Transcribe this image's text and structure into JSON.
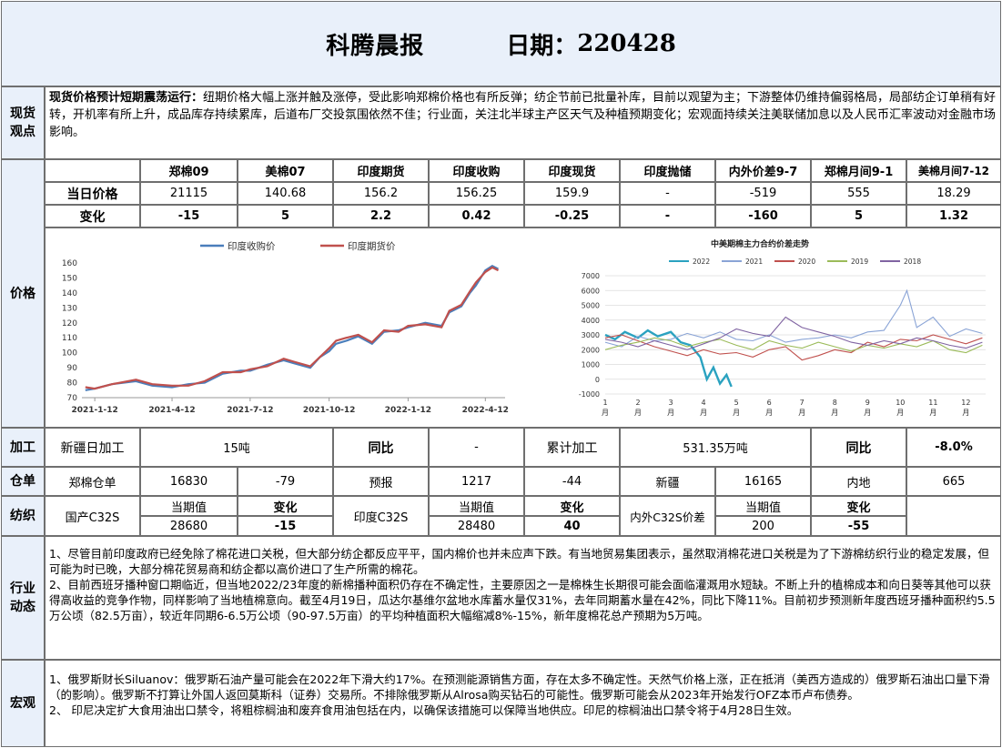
{
  "header": {
    "title": "科腾晨报",
    "date_label": "日期：",
    "date_value": "220428"
  },
  "spot_view": {
    "label": "现货\n观点",
    "headline": "现货价格预计短期震荡运行：",
    "text": "纽期价格大幅上涨并触及涨停，受此影响郑棉价格也有所反弹；纺企节前已批量补库，目前以观望为主；下游整体仍维持偏弱格局，局部纺企订单稍有好转，开机率有所上升，成品库存持续累库，后道布厂交投氛围依然不佳；行业面，关注北半球主产区天气及种植预期变化；宏观面持续关注美联储加息以及人民币汇率波动对金融市场影响。"
  },
  "price": {
    "label": "价格",
    "headers": [
      "郑棉09",
      "美棉07",
      "印度期货",
      "印度收购",
      "印度现货",
      "印度抛储",
      "内外价差9-7",
      "郑棉月间9-1",
      "美棉月间7-12"
    ],
    "row1_label": "当日价格",
    "row1": [
      "21115",
      "140.68",
      "156.2",
      "156.25",
      "159.9",
      "-",
      "-519",
      "555",
      "18.29"
    ],
    "row2_label": "变化",
    "row2": [
      "-15",
      "5",
      "2.2",
      "0.42",
      "-0.25",
      "-",
      "-160",
      "5",
      "1.32"
    ]
  },
  "chart_data": [
    {
      "type": "line",
      "title": "",
      "series": [
        {
          "name": "印度收购价",
          "color": "#4a7ebb",
          "x": [
            "2021-01-01",
            "2021-01-12",
            "2021-02-01",
            "2021-03-01",
            "2021-03-20",
            "2021-04-12",
            "2021-05-01",
            "2021-05-20",
            "2021-06-10",
            "2021-07-01",
            "2021-07-12",
            "2021-08-01",
            "2021-08-20",
            "2021-09-01",
            "2021-09-20",
            "2021-10-01",
            "2021-10-12",
            "2021-10-20",
            "2021-11-01",
            "2021-11-15",
            "2021-12-01",
            "2021-12-15",
            "2022-01-01",
            "2022-01-12",
            "2022-02-01",
            "2022-02-20",
            "2022-03-01",
            "2022-03-15",
            "2022-03-25",
            "2022-04-01",
            "2022-04-12",
            "2022-04-20",
            "2022-04-27"
          ],
          "values": [
            75,
            76,
            79,
            81,
            78,
            77,
            79,
            80,
            86,
            88,
            88,
            92,
            95,
            93,
            90,
            97,
            101,
            106,
            108,
            111,
            106,
            114,
            115,
            117,
            120,
            118,
            127,
            131,
            140,
            145,
            155,
            158,
            156
          ]
        },
        {
          "name": "印度期货价",
          "color": "#c0504d",
          "x": [
            "2021-01-01",
            "2021-01-12",
            "2021-02-01",
            "2021-03-01",
            "2021-03-20",
            "2021-04-12",
            "2021-05-01",
            "2021-05-20",
            "2021-06-10",
            "2021-07-01",
            "2021-07-12",
            "2021-08-01",
            "2021-08-20",
            "2021-09-01",
            "2021-09-20",
            "2021-10-01",
            "2021-10-12",
            "2021-10-20",
            "2021-11-01",
            "2021-11-15",
            "2021-12-01",
            "2021-12-15",
            "2022-01-01",
            "2022-01-12",
            "2022-02-01",
            "2022-02-20",
            "2022-03-01",
            "2022-03-15",
            "2022-03-25",
            "2022-04-01",
            "2022-04-12",
            "2022-04-20",
            "2022-04-27"
          ],
          "values": [
            77,
            76,
            79,
            82,
            79,
            78,
            78,
            81,
            87,
            87,
            89,
            91,
            96,
            94,
            91,
            97,
            103,
            108,
            110,
            112,
            107,
            115,
            114,
            118,
            119,
            117,
            128,
            132,
            141,
            147,
            154,
            157,
            155
          ]
        }
      ],
      "xticks": [
        "2021-1-12",
        "2021-4-12",
        "2021-7-12",
        "2021-10-12",
        "2022-1-12",
        "2022-4-12"
      ],
      "ylim": [
        70,
        160
      ],
      "yticks": [
        70,
        80,
        90,
        100,
        110,
        120,
        130,
        140,
        150,
        160
      ],
      "legend": "top-center"
    },
    {
      "type": "line",
      "title": "中美期棉主力合约价差走势",
      "xticks": [
        "1\n月",
        "2\n月",
        "3\n月",
        "4\n月",
        "5\n月",
        "6\n月",
        "7\n月",
        "8\n月",
        "9\n月",
        "10\n月",
        "11\n月",
        "12\n月"
      ],
      "ylim": [
        -1000,
        7000
      ],
      "yticks": [
        -1000,
        0,
        1000,
        2000,
        3000,
        4000,
        5000,
        6000,
        7000
      ],
      "legend": "top",
      "series": [
        {
          "name": "2022",
          "color": "#2aa2c0",
          "x": [
            1,
            1.3,
            1.6,
            2,
            2.3,
            2.6,
            3,
            3.3,
            3.6,
            3.9,
            4.1,
            4.3,
            4.5,
            4.7,
            4.85
          ],
          "values": [
            3000,
            2700,
            3200,
            2800,
            3300,
            2900,
            3200,
            2500,
            2300,
            1500,
            0,
            800,
            -300,
            300,
            -500
          ]
        },
        {
          "name": "2021",
          "color": "#8aa4d6",
          "x": [
            1,
            1.5,
            2,
            2.5,
            3,
            3.5,
            4,
            4.5,
            5,
            5.5,
            6,
            6.5,
            7,
            7.5,
            8,
            8.5,
            9,
            9.5,
            10,
            10.2,
            10.5,
            11,
            11.5,
            12,
            12.5
          ],
          "values": [
            2500,
            2200,
            2900,
            2600,
            2700,
            3100,
            2800,
            3200,
            2700,
            2600,
            3000,
            2500,
            2700,
            2800,
            3000,
            2800,
            3200,
            3300,
            5000,
            6000,
            3500,
            4200,
            2900,
            3400,
            3100
          ]
        },
        {
          "name": "2020",
          "color": "#c0504d",
          "x": [
            1,
            1.5,
            2,
            2.5,
            3,
            3.5,
            4,
            4.5,
            5,
            5.5,
            6,
            6.5,
            7,
            7.5,
            8,
            8.5,
            9,
            9.5,
            10,
            10.5,
            11,
            11.5,
            12,
            12.5
          ],
          "values": [
            2800,
            3000,
            2600,
            2200,
            1900,
            1600,
            2000,
            1700,
            1800,
            1500,
            2000,
            2200,
            1300,
            1600,
            2000,
            1800,
            2500,
            2200,
            2700,
            2600,
            3000,
            2700,
            2400,
            2800
          ]
        },
        {
          "name": "2019",
          "color": "#9bbb59",
          "x": [
            1,
            1.5,
            2,
            2.5,
            3,
            3.5,
            4,
            4.5,
            5,
            5.5,
            6,
            6.5,
            7,
            7.5,
            8,
            8.5,
            9,
            9.5,
            10,
            10.5,
            11,
            11.5,
            12,
            12.5
          ],
          "values": [
            2000,
            2300,
            2500,
            2800,
            2600,
            2200,
            2500,
            2700,
            2300,
            2000,
            2600,
            2300,
            2100,
            2500,
            2200,
            1900,
            2300,
            2100,
            2400,
            2200,
            2600,
            2000,
            1800,
            2300
          ]
        },
        {
          "name": "2018",
          "color": "#8064a2",
          "x": [
            1,
            1.5,
            2,
            2.5,
            3,
            3.5,
            4,
            4.5,
            5,
            5.5,
            6,
            6.5,
            7,
            7.5,
            8,
            8.5,
            9,
            9.5,
            10,
            10.5,
            11,
            11.5,
            12,
            12.5
          ],
          "values": [
            2700,
            2500,
            2200,
            2600,
            2300,
            2000,
            2400,
            2800,
            3400,
            3100,
            2900,
            4200,
            3500,
            3200,
            2900,
            2500,
            2300,
            2600,
            2400,
            2800,
            2600,
            2300,
            2100,
            2500
          ]
        }
      ]
    }
  ],
  "processing": {
    "label": "加工",
    "item1": "新疆日加工",
    "value1": "15吨",
    "yoy1_label": "同比",
    "yoy1": "-",
    "item2": "累计加工",
    "value2": "531.35万吨",
    "yoy2_label": "同比",
    "yoy2": "-8.0%"
  },
  "warehouse": {
    "label": "仓单",
    "items": [
      "郑棉仓单",
      "16830",
      "-79",
      "预报",
      "1217",
      "-44",
      "新疆",
      "16165",
      "内地",
      "665"
    ]
  },
  "textile": {
    "label": "纺织",
    "g1_name": "国产C32S",
    "g1_cur_label": "当期值",
    "g1_chg_label": "变化",
    "g1_cur": "28680",
    "g1_chg": "-15",
    "g2_name": "印度C32S",
    "g2_cur_label": "当期值",
    "g2_chg_label": "变化",
    "g2_cur": "28480",
    "g2_chg": "40",
    "g3_name": "内外C32S价差",
    "g3_cur_label": "当期值",
    "g3_chg_label": "变化",
    "g3_cur": "200",
    "g3_chg": "-55"
  },
  "industry": {
    "label": "行业\n动态",
    "p1": "1、尽管目前印度政府已经免除了棉花进口关税，但大部分纺企都反应平平，国内棉价也并未应声下跌。有当地贸易集团表示，虽然取消棉花进口关税是为了下游棉纺织行业的稳定发展，但可能为时已晚，大部分棉花贸易商和纺企都以高价进口了生产所需的棉花。",
    "p2": "2、目前西班牙播种窗口期临近，但当地2022/23年度的新棉播种面积仍存在不确定性，主要原因之一是棉株生长期很可能会面临灌溉用水短缺。不断上升的植棉成本和向日葵等其他可以获得高收益的竞争作物，同样影响了当地植棉意向。截至4月19日，瓜达尔基维尔盆地水库蓄水量仅31%，去年同期蓄水量在42%，同比下降11%。目前初步预测新年度西班牙播种面积约5.5万公顷（82.5万亩），较近年同期6-6.5万公顷（90-97.5万亩）的平均种植面积大幅缩减8%-15%，新年度棉花总产预期为5万吨。"
  },
  "macro": {
    "label": "宏观",
    "p1": "1、俄罗斯财长Siluanov：俄罗斯石油产量可能会在2022年下滑大约17%。在预测能源销售方面，存在太多不确定性。天然气价格上涨，正在抵消（美西方造成的）俄罗斯石油出口量下滑（的影响）。俄罗斯不打算让外国人返回莫斯科（证券）交易所。不排除俄罗斯从Alrosa购买钻石的可能性。俄罗斯可能会从2023年开始发行OFZ本币卢布债券。",
    "p2": "2、 印尼决定扩大食用油出口禁令，将粗棕榈油和废弃食用油包括在内，以确保该措施可以保障当地供应。印尼的棕榈油出口禁令将于4月28日生效。"
  }
}
